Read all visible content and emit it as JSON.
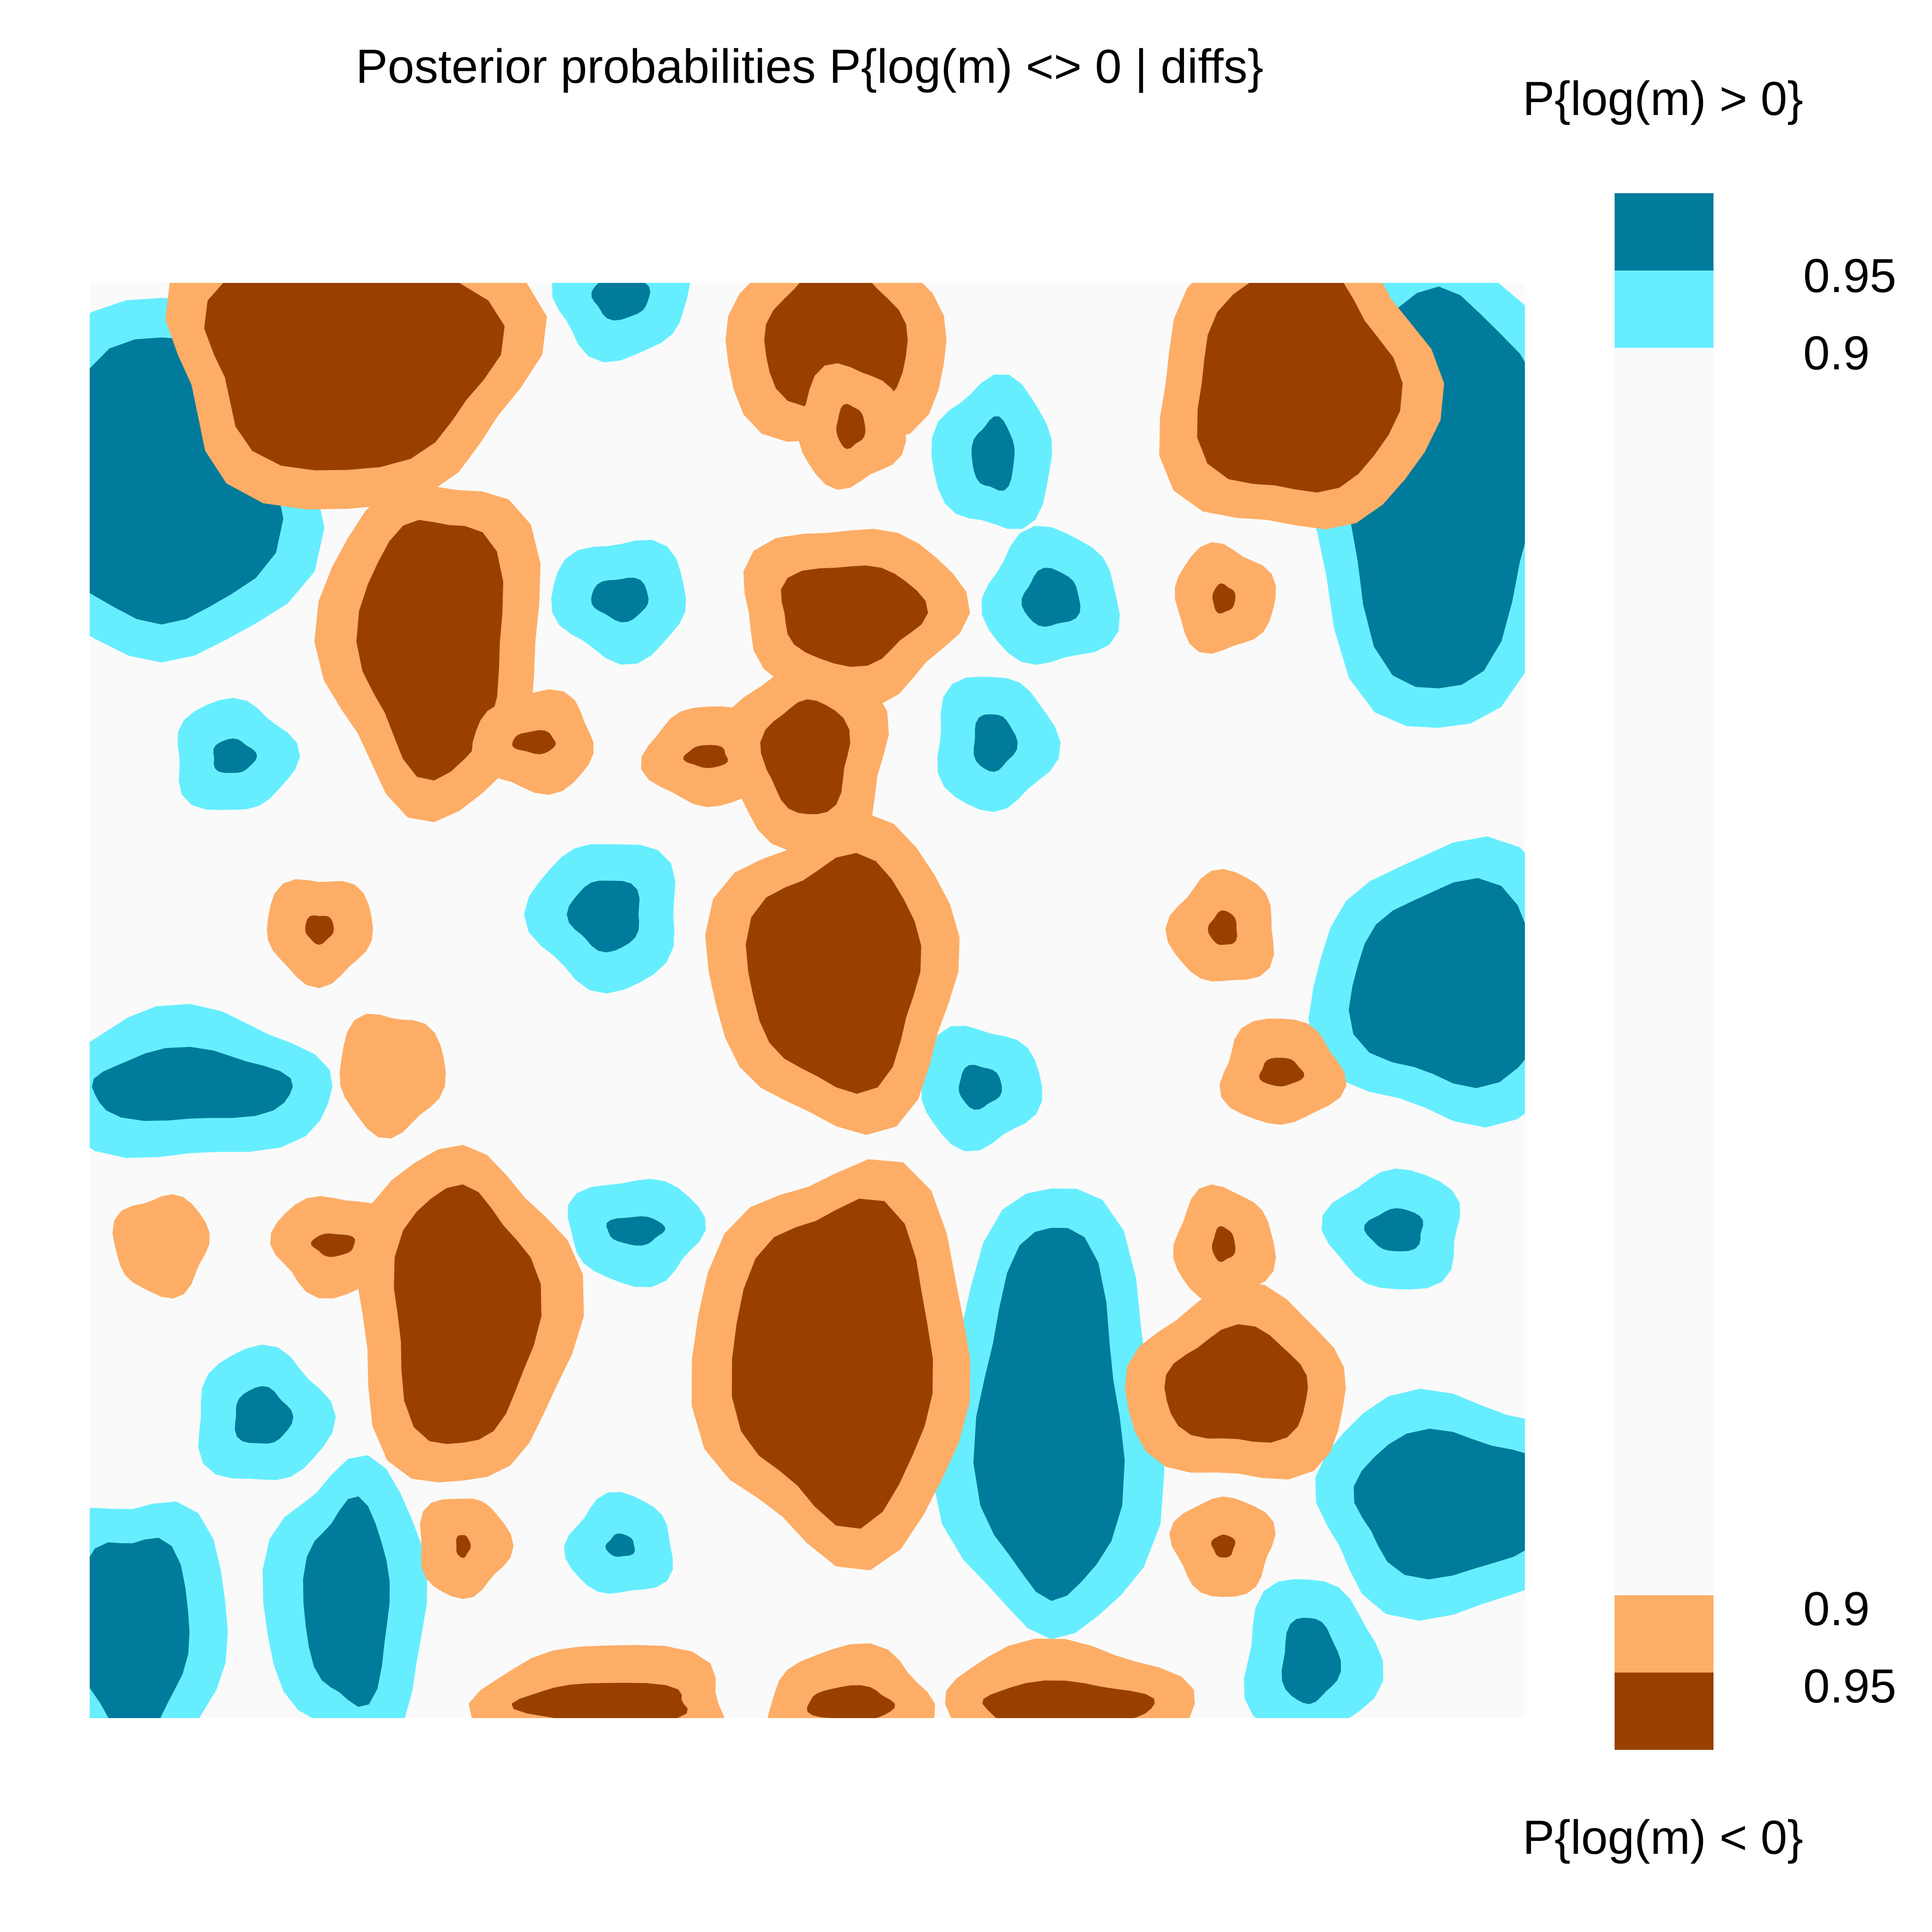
{
  "chart_data": {
    "type": "heatmap",
    "title": "Posterior probabilities P{log(m) <> 0 | diffs}",
    "xlabel": "",
    "ylabel": "",
    "axes_shown": false,
    "grid": false,
    "legend_position": "right",
    "colors": {
      "background": "#fafafa",
      "positive_0_90": "#66eeff",
      "positive_0_95": "#007b9b",
      "negative_0_90": "#fdad66",
      "negative_0_95": "#994000"
    },
    "legend": {
      "top_title": "P{log(m) > 0}",
      "bottom_title": "P{log(m) < 0}",
      "entries": [
        {
          "label": "0.95",
          "direction": "positive",
          "threshold": 0.95,
          "color": "#007b9b"
        },
        {
          "label": "0.9",
          "direction": "positive",
          "threshold": 0.9,
          "color": "#66eeff"
        },
        {
          "label": "0.9",
          "direction": "negative",
          "threshold": 0.9,
          "color": "#fdad66"
        },
        {
          "label": "0.95",
          "direction": "negative",
          "threshold": 0.95,
          "color": "#994000"
        }
      ]
    },
    "regions": [
      {
        "name": "pos-left-upper",
        "direction": "positive",
        "level": 0.95,
        "cx": 0.05,
        "cy": 0.14,
        "rx": 0.08,
        "ry": 0.1
      },
      {
        "name": "pos-left-upper-small",
        "direction": "positive",
        "level": 0.95,
        "cx": 0.1,
        "cy": 0.33,
        "rx": 0.015,
        "ry": 0.012
      },
      {
        "name": "pos-top-center-small",
        "direction": "positive",
        "level": 0.95,
        "cx": 0.37,
        "cy": 0.01,
        "rx": 0.02,
        "ry": 0.015
      },
      {
        "name": "pos-center-upper-1",
        "direction": "positive",
        "level": 0.95,
        "cx": 0.37,
        "cy": 0.22,
        "rx": 0.02,
        "ry": 0.015
      },
      {
        "name": "pos-right-upper-1",
        "direction": "positive",
        "level": 0.95,
        "cx": 0.63,
        "cy": 0.12,
        "rx": 0.015,
        "ry": 0.025
      },
      {
        "name": "pos-right-upper-2",
        "direction": "positive",
        "level": 0.95,
        "cx": 0.67,
        "cy": 0.22,
        "rx": 0.02,
        "ry": 0.02
      },
      {
        "name": "pos-right-upper-3",
        "direction": "positive",
        "level": 0.95,
        "cx": 0.63,
        "cy": 0.32,
        "rx": 0.015,
        "ry": 0.02
      },
      {
        "name": "pos-right-edge-top",
        "direction": "positive",
        "level": 0.95,
        "cx": 0.94,
        "cy": 0.14,
        "rx": 0.07,
        "ry": 0.14
      },
      {
        "name": "pos-center-mid",
        "direction": "positive",
        "level": 0.95,
        "cx": 0.36,
        "cy": 0.44,
        "rx": 0.025,
        "ry": 0.025
      },
      {
        "name": "pos-right-mid",
        "direction": "positive",
        "level": 0.95,
        "cx": 0.95,
        "cy": 0.49,
        "rx": 0.07,
        "ry": 0.07
      },
      {
        "name": "pos-left-mid",
        "direction": "positive",
        "level": 0.95,
        "cx": 0.07,
        "cy": 0.56,
        "rx": 0.07,
        "ry": 0.025
      },
      {
        "name": "pos-center-mid-small",
        "direction": "positive",
        "level": 0.95,
        "cx": 0.62,
        "cy": 0.56,
        "rx": 0.015,
        "ry": 0.015
      },
      {
        "name": "pos-center-lower-small",
        "direction": "positive",
        "level": 0.95,
        "cx": 0.38,
        "cy": 0.66,
        "rx": 0.02,
        "ry": 0.01
      },
      {
        "name": "pos-right-lower-small",
        "direction": "positive",
        "level": 0.95,
        "cx": 0.91,
        "cy": 0.66,
        "rx": 0.02,
        "ry": 0.015
      },
      {
        "name": "pos-center-lower-tall",
        "direction": "positive",
        "level": 0.95,
        "cx": 0.67,
        "cy": 0.79,
        "rx": 0.05,
        "ry": 0.13
      },
      {
        "name": "pos-left-lower-small",
        "direction": "positive",
        "level": 0.95,
        "cx": 0.12,
        "cy": 0.79,
        "rx": 0.02,
        "ry": 0.02
      },
      {
        "name": "pos-right-lower-cluster",
        "direction": "positive",
        "level": 0.95,
        "cx": 0.95,
        "cy": 0.85,
        "rx": 0.07,
        "ry": 0.05
      },
      {
        "name": "pos-left-bottom-1",
        "direction": "positive",
        "level": 0.95,
        "cx": 0.03,
        "cy": 0.94,
        "rx": 0.04,
        "ry": 0.07
      },
      {
        "name": "pos-left-bottom-2",
        "direction": "positive",
        "level": 0.95,
        "cx": 0.18,
        "cy": 0.92,
        "rx": 0.03,
        "ry": 0.07
      },
      {
        "name": "pos-center-bottom-small",
        "direction": "positive",
        "level": 0.95,
        "cx": 0.37,
        "cy": 0.88,
        "rx": 0.01,
        "ry": 0.008
      },
      {
        "name": "pos-right-bottom",
        "direction": "positive",
        "level": 0.95,
        "cx": 0.85,
        "cy": 0.96,
        "rx": 0.02,
        "ry": 0.03
      },
      {
        "name": "neg-top-left",
        "direction": "negative",
        "level": 0.95,
        "cx": 0.18,
        "cy": 0.05,
        "rx": 0.1,
        "ry": 0.08
      },
      {
        "name": "neg-left-upper",
        "direction": "negative",
        "level": 0.95,
        "cx": 0.24,
        "cy": 0.25,
        "rx": 0.05,
        "ry": 0.09
      },
      {
        "name": "neg-left-upper-small",
        "direction": "negative",
        "level": 0.95,
        "cx": 0.31,
        "cy": 0.32,
        "rx": 0.015,
        "ry": 0.008
      },
      {
        "name": "neg-top-center",
        "direction": "negative",
        "level": 0.95,
        "cx": 0.52,
        "cy": 0.04,
        "rx": 0.05,
        "ry": 0.05
      },
      {
        "name": "neg-top-center-small",
        "direction": "negative",
        "level": 0.95,
        "cx": 0.53,
        "cy": 0.1,
        "rx": 0.01,
        "ry": 0.015
      },
      {
        "name": "neg-center-upper",
        "direction": "negative",
        "level": 0.95,
        "cx": 0.53,
        "cy": 0.23,
        "rx": 0.05,
        "ry": 0.035
      },
      {
        "name": "neg-center-upper-2",
        "direction": "negative",
        "level": 0.95,
        "cx": 0.5,
        "cy": 0.33,
        "rx": 0.03,
        "ry": 0.04
      },
      {
        "name": "neg-center-upper-small",
        "direction": "negative",
        "level": 0.95,
        "cx": 0.43,
        "cy": 0.33,
        "rx": 0.015,
        "ry": 0.008
      },
      {
        "name": "neg-top-right",
        "direction": "negative",
        "level": 0.95,
        "cx": 0.84,
        "cy": 0.07,
        "rx": 0.07,
        "ry": 0.08
      },
      {
        "name": "neg-right-upper-small",
        "direction": "negative",
        "level": 0.95,
        "cx": 0.79,
        "cy": 0.22,
        "rx": 0.008,
        "ry": 0.01
      },
      {
        "name": "neg-left-mid-small",
        "direction": "negative",
        "level": 0.95,
        "cx": 0.16,
        "cy": 0.45,
        "rx": 0.01,
        "ry": 0.01
      },
      {
        "name": "neg-center-mid",
        "direction": "negative",
        "level": 0.95,
        "cx": 0.52,
        "cy": 0.48,
        "rx": 0.06,
        "ry": 0.08
      },
      {
        "name": "neg-right-mid-small",
        "direction": "negative",
        "level": 0.95,
        "cx": 0.79,
        "cy": 0.45,
        "rx": 0.01,
        "ry": 0.012
      },
      {
        "name": "neg-right-mid-small-2",
        "direction": "negative",
        "level": 0.95,
        "cx": 0.83,
        "cy": 0.55,
        "rx": 0.015,
        "ry": 0.01
      },
      {
        "name": "neg-left-lower",
        "direction": "negative",
        "level": 0.95,
        "cx": 0.26,
        "cy": 0.72,
        "rx": 0.05,
        "ry": 0.09
      },
      {
        "name": "neg-left-lower-small",
        "direction": "negative",
        "level": 0.95,
        "cx": 0.17,
        "cy": 0.67,
        "rx": 0.015,
        "ry": 0.008
      },
      {
        "name": "neg-center-lower",
        "direction": "negative",
        "level": 0.95,
        "cx": 0.52,
        "cy": 0.75,
        "rx": 0.07,
        "ry": 0.11
      },
      {
        "name": "neg-right-lower",
        "direction": "negative",
        "level": 0.95,
        "cx": 0.8,
        "cy": 0.77,
        "rx": 0.05,
        "ry": 0.04
      },
      {
        "name": "neg-right-lower-small",
        "direction": "negative",
        "level": 0.95,
        "cx": 0.79,
        "cy": 0.67,
        "rx": 0.008,
        "ry": 0.012
      },
      {
        "name": "neg-center-bottom-small",
        "direction": "negative",
        "level": 0.95,
        "cx": 0.26,
        "cy": 0.88,
        "rx": 0.005,
        "ry": 0.008
      },
      {
        "name": "neg-right-bottom-small",
        "direction": "negative",
        "level": 0.95,
        "cx": 0.79,
        "cy": 0.88,
        "rx": 0.008,
        "ry": 0.008
      },
      {
        "name": "neg-bottom-1",
        "direction": "negative",
        "level": 0.95,
        "cx": 0.36,
        "cy": 0.99,
        "rx": 0.06,
        "ry": 0.015
      },
      {
        "name": "neg-bottom-2",
        "direction": "negative",
        "level": 0.95,
        "cx": 0.53,
        "cy": 0.99,
        "rx": 0.03,
        "ry": 0.012
      },
      {
        "name": "neg-bottom-3",
        "direction": "negative",
        "level": 0.95,
        "cx": 0.68,
        "cy": 0.99,
        "rx": 0.06,
        "ry": 0.015
      },
      {
        "name": "neg-left-mid-outline",
        "direction": "negative",
        "level": 0.9,
        "cx": 0.21,
        "cy": 0.55,
        "rx": 0.01,
        "ry": 0.015
      },
      {
        "name": "neg-left-small-outline",
        "direction": "negative",
        "level": 0.9,
        "cx": 0.05,
        "cy": 0.67,
        "rx": 0.006,
        "ry": 0.008
      }
    ]
  }
}
